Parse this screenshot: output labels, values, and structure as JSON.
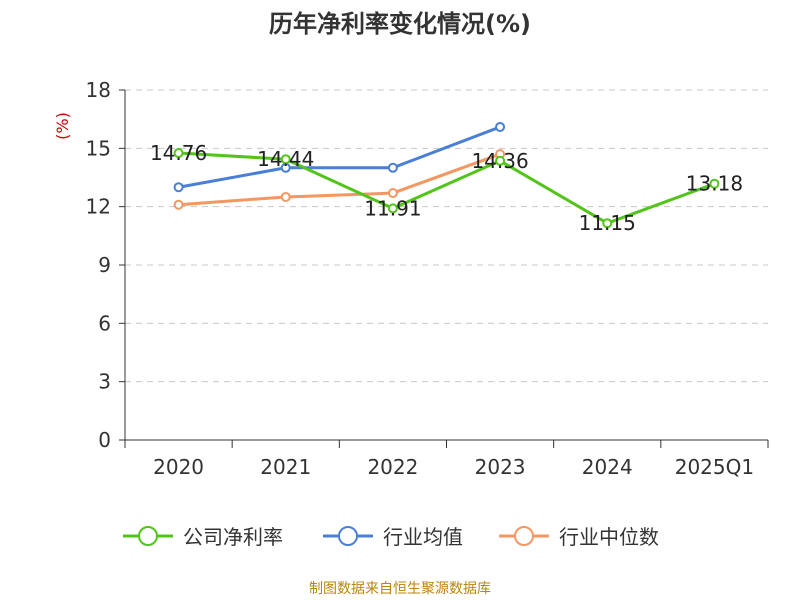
{
  "title": "历年净利率变化情况(%)",
  "source": "制图数据来自恒生聚源数据库",
  "chart_data": {
    "type": "line",
    "title": "历年净利率变化情况(%)",
    "ylabel": "(%)",
    "xlabel": "",
    "ylim": [
      0,
      18
    ],
    "yticks": [
      0,
      3,
      6,
      9,
      12,
      15,
      18
    ],
    "grid": true,
    "legend_position": "bottom",
    "categories": [
      "2020",
      "2021",
      "2022",
      "2023",
      "2024",
      "2025Q1"
    ],
    "series": [
      {
        "name": "公司净利率",
        "color": "#52c41a",
        "values": [
          14.76,
          14.44,
          11.91,
          14.36,
          11.15,
          13.18
        ],
        "labels": [
          "14.76",
          "14.44",
          "11.91",
          "14.36",
          "11.15",
          "13.18"
        ]
      },
      {
        "name": "行业均值",
        "color": "#4a7fd6",
        "values": [
          13.0,
          14.0,
          14.0,
          16.1,
          null,
          null
        ]
      },
      {
        "name": "行业中位数",
        "color": "#f39763",
        "values": [
          12.1,
          12.5,
          12.7,
          14.7,
          null,
          null
        ]
      }
    ]
  }
}
